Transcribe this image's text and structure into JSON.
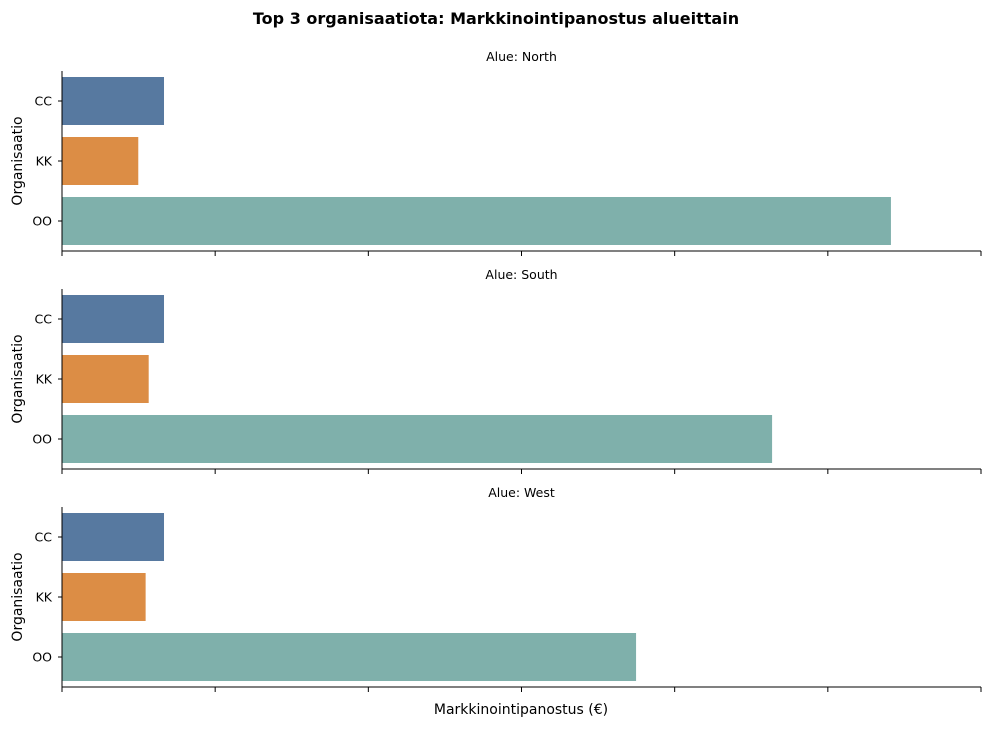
{
  "chart_data": {
    "type": "bar",
    "orientation": "horizontal",
    "title": "Top 3 organisaatiota: Markkinointipanostus alueittain",
    "xlabel": "Markkinointipanostus (€)",
    "ylabel": "Organisaatio",
    "categories": [
      "CC",
      "KK",
      "OO"
    ],
    "colors": [
      "#5779a0",
      "#dc8d45",
      "#7fb0ab"
    ],
    "shared_xaxis": true,
    "xlim": [
      0,
      3000
    ],
    "xticks": [
      0,
      500,
      1000,
      1500,
      2000,
      2500,
      3000
    ],
    "xtick_labels_visible": false,
    "facets": [
      {
        "title": "Alue: North",
        "values": [
          333,
          249,
          2706
        ]
      },
      {
        "title": "Alue: South",
        "values": [
          333,
          283,
          2318
        ]
      },
      {
        "title": "Alue: West",
        "values": [
          333,
          273,
          1874
        ]
      }
    ],
    "grid": false,
    "legend": "none"
  }
}
